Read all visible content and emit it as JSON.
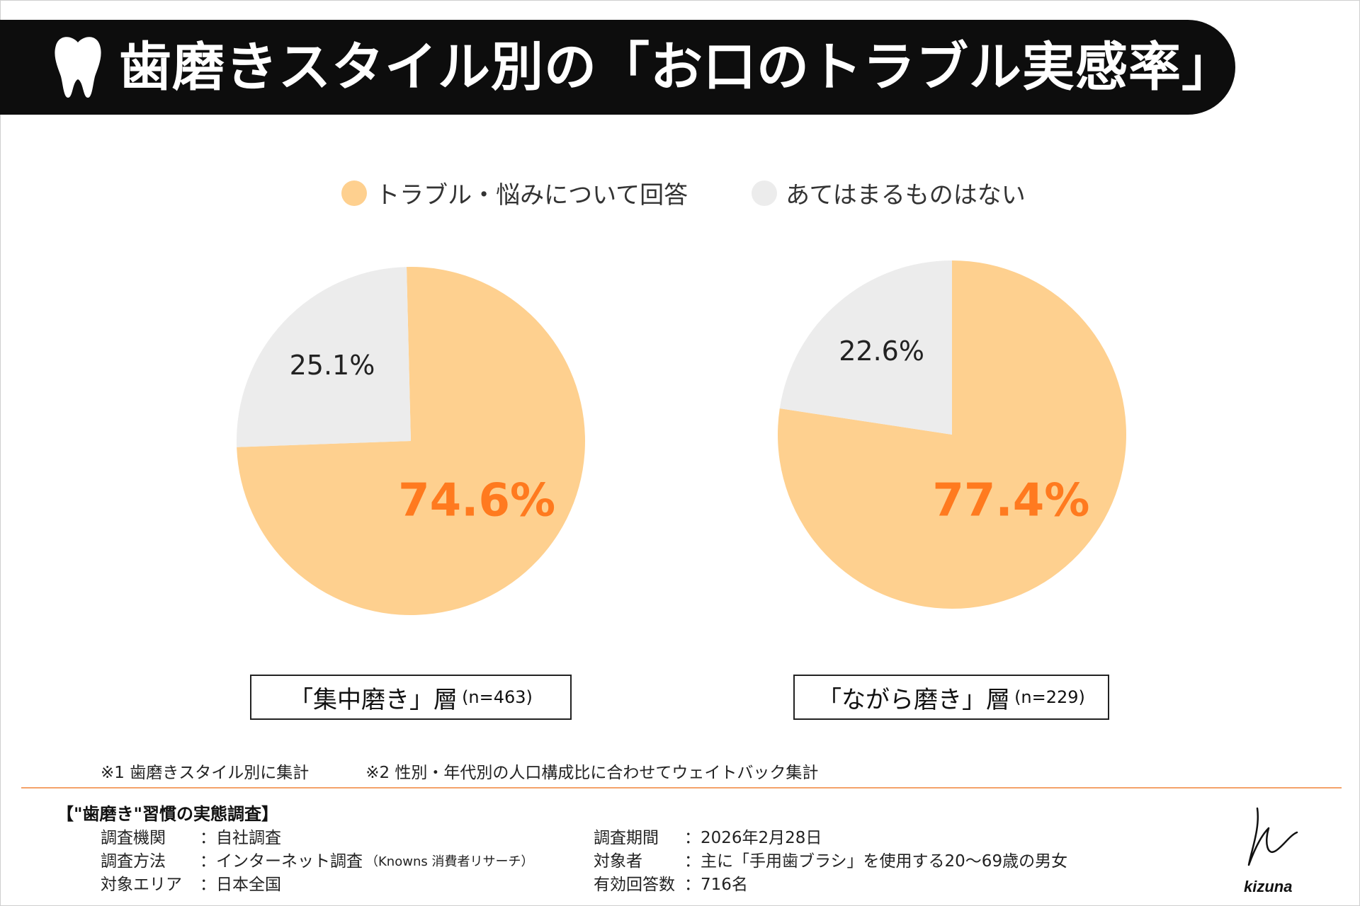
{
  "title": "歯磨きスタイル別の「お口のトラブル実感率」",
  "colors": {
    "trouble": "#fed08f",
    "none": "#ececec",
    "highlight": "#ff7a1f",
    "accent_line": "#f4a36a",
    "banner": "#0d0d0d"
  },
  "legend": [
    {
      "label": "トラブル・悩みについて回答",
      "color": "#fed08f"
    },
    {
      "label": "あてはまるものはない",
      "color": "#ececec"
    }
  ],
  "chart_data": [
    {
      "type": "pie",
      "group": "「集中磨き」層",
      "n": "(n=463)",
      "slices": [
        {
          "label": "トラブル・悩みについて回答",
          "value": 74.6,
          "display": "74.6%"
        },
        {
          "label": "あてはまるものはない",
          "value": 25.1,
          "display": "25.1%"
        }
      ]
    },
    {
      "type": "pie",
      "group": "「ながら磨き」層",
      "n": "(n=229)",
      "slices": [
        {
          "label": "トラブル・悩みについて回答",
          "value": 77.4,
          "display": "77.4%"
        },
        {
          "label": "あてはまるものはない",
          "value": 22.6,
          "display": "22.6%"
        }
      ]
    }
  ],
  "notes": [
    "※1 歯磨きスタイル別に集計",
    "※2 性別・年代別の人口構成比に合わせてウェイトバック集計"
  ],
  "survey": {
    "heading": "【\"歯磨き\"習慣の実態調査】",
    "left": [
      {
        "key": "調査機関",
        "value": "：自社調査"
      },
      {
        "key": "調査方法",
        "value": "：インターネット調査",
        "extra": "（Knowns 消費者リサーチ）"
      },
      {
        "key": "対象エリア",
        "value": "：日本全国"
      }
    ],
    "right": [
      {
        "key": "調査期間",
        "value": "：2026年2月28日"
      },
      {
        "key": "対象者",
        "value": "：主に「手用歯ブラシ」を使用する20～69歳の男女"
      },
      {
        "key": "有効回答数",
        "value": "：716名"
      }
    ]
  },
  "brand": "kizuna"
}
